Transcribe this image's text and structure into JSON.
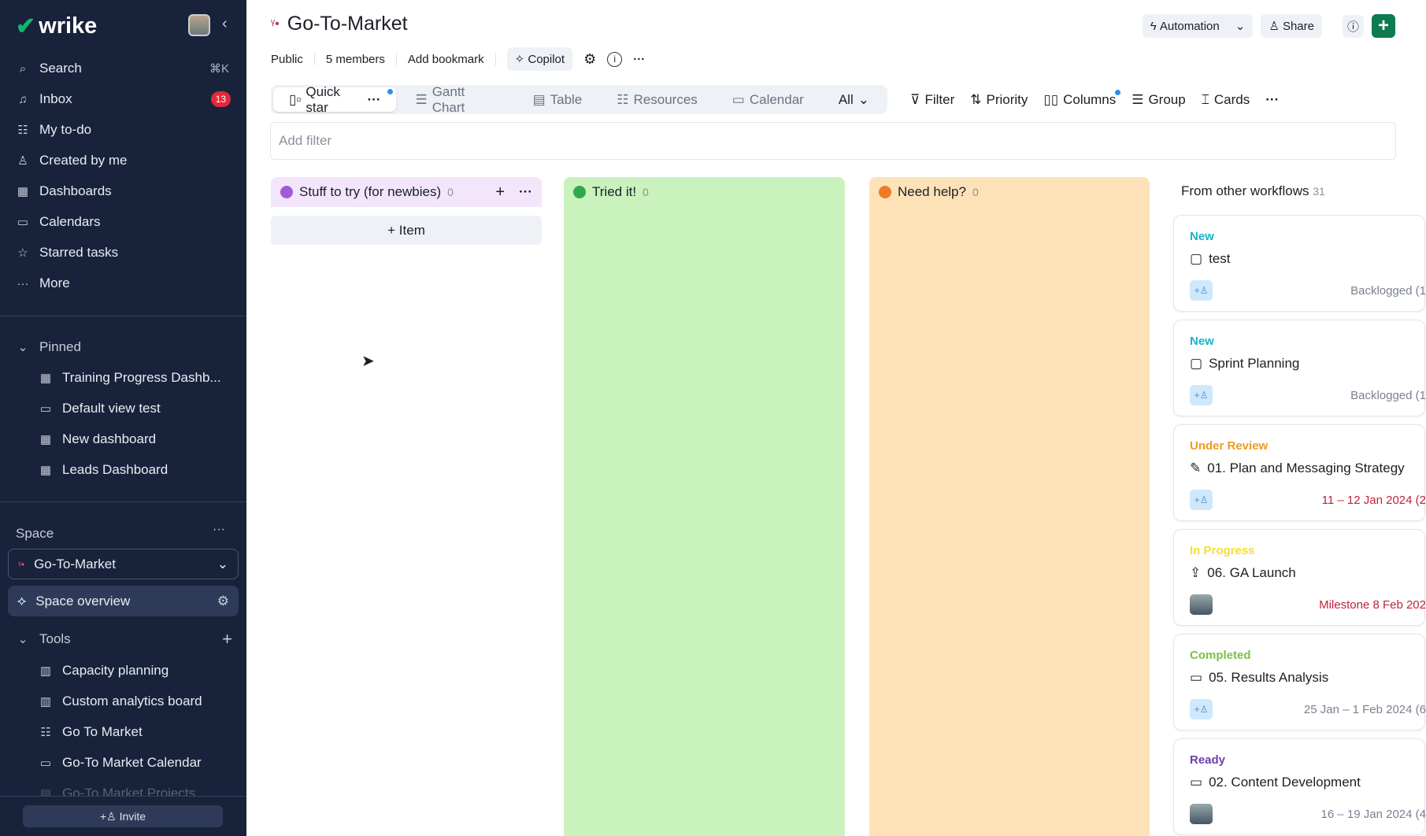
{
  "sidebar": {
    "logo": "wrike",
    "nav": [
      {
        "icon": "search-icon",
        "g": "⌕",
        "label": "Search",
        "kbd": "⌘K"
      },
      {
        "icon": "bell-icon",
        "g": "♫",
        "label": "Inbox",
        "badge": "13"
      },
      {
        "icon": "todo-icon",
        "g": "☷",
        "label": "My to-do"
      },
      {
        "icon": "user-icon",
        "g": "♙",
        "label": "Created by me"
      },
      {
        "icon": "dashboard-icon",
        "g": "▦",
        "label": "Dashboards"
      },
      {
        "icon": "calendar-icon",
        "g": "▭",
        "label": "Calendars"
      },
      {
        "icon": "star-icon",
        "g": "☆",
        "label": "Starred tasks"
      },
      {
        "icon": "more-icon",
        "g": "···",
        "label": "More"
      }
    ],
    "pinned_label": "Pinned",
    "pinned": [
      {
        "icon": "dashboard-icon",
        "g": "▦",
        "label": "Training Progress Dashb..."
      },
      {
        "icon": "folder-icon",
        "g": "▭",
        "label": "Default view test"
      },
      {
        "icon": "dashboard-icon",
        "g": "▦",
        "label": "New dashboard"
      },
      {
        "icon": "dashboard-icon",
        "g": "▦",
        "label": "Leads Dashboard"
      }
    ],
    "space_label": "Space",
    "space_selected": "Go-To-Market",
    "space_overview": "Space overview",
    "tools_label": "Tools",
    "tools": [
      {
        "icon": "analytics-icon",
        "g": "▥",
        "label": "Capacity planning"
      },
      {
        "icon": "analytics-icon",
        "g": "▥",
        "label": "Custom analytics board"
      },
      {
        "icon": "resources-icon",
        "g": "☷",
        "label": "Go To Market"
      },
      {
        "icon": "calendar-icon",
        "g": "▭",
        "label": "Go-To Market Calendar"
      },
      {
        "icon": "table-icon",
        "g": "▤",
        "label": "Go-To Market Projects"
      }
    ],
    "invite": "Invite"
  },
  "header": {
    "title": "Go-To-Market",
    "meta": [
      "Public",
      "5 members",
      "Add bookmark"
    ],
    "copilot": "Copilot",
    "automation": "Automation",
    "share": "Share"
  },
  "tabs": [
    {
      "label": "Quick star",
      "icon": "board-icon",
      "g": "▯▫",
      "active": true
    },
    {
      "label": "Gantt Chart",
      "icon": "gantt-icon",
      "g": "☰"
    },
    {
      "label": "Table",
      "icon": "table-icon",
      "g": "▤"
    },
    {
      "label": "Resources",
      "icon": "resources-icon",
      "g": "☷"
    },
    {
      "label": "Calendar",
      "icon": "calendar-icon",
      "g": "▭"
    },
    {
      "label": "All",
      "icon": "chevron-down-icon",
      "g": "⌄"
    }
  ],
  "toolbar": [
    {
      "label": "Filter",
      "icon": "filter-icon",
      "g": "⊽"
    },
    {
      "label": "Priority",
      "icon": "sort-icon",
      "g": "⇅"
    },
    {
      "label": "Columns",
      "icon": "columns-icon",
      "g": "▯▯"
    },
    {
      "label": "Group",
      "icon": "group-icon",
      "g": "☰"
    },
    {
      "label": "Cards",
      "icon": "cards-icon",
      "g": "⌶"
    }
  ],
  "filter_placeholder": "Add filter",
  "columns": [
    {
      "title": "Stuff to try (for newbies)",
      "count": "0",
      "color": "#f3e6fb",
      "dot": "#a25bd6"
    },
    {
      "title": "Tried it!",
      "count": "0",
      "color": "#c9f2bd",
      "dot": "#2eaa4c"
    },
    {
      "title": "Need help?",
      "count": "0",
      "color": "#fde2b7",
      "dot": "#ee7c24"
    }
  ],
  "add_item": "+ Item",
  "other": {
    "title": "From other workflows",
    "count": "31"
  },
  "cards": [
    {
      "status": "New",
      "color": "#19b2c8",
      "name": "test",
      "icon": "task-icon",
      "date": "Backlogged (1",
      "dcolor": "#7a8190"
    },
    {
      "status": "New",
      "color": "#19b2c8",
      "name": "Sprint Planning",
      "icon": "task-icon",
      "date": "Backlogged (1",
      "dcolor": "#7a8190"
    },
    {
      "status": "Under Review",
      "color": "#f09a22",
      "name": "01. Plan and Messaging Strategy",
      "icon": "edit-icon",
      "date": "11 – 12 Jan 2024 (2",
      "dcolor": "#c0233c"
    },
    {
      "status": "In Progress",
      "color": "#f2e03a",
      "name": "06. GA Launch",
      "icon": "milestone-icon",
      "date": "Milestone 8 Feb 202",
      "dcolor": "#c0233c",
      "photo": true
    },
    {
      "status": "Completed",
      "color": "#7ac24a",
      "name": "05. Results Analysis",
      "icon": "folder-icon",
      "date": "25 Jan – 1 Feb 2024 (6",
      "dcolor": "#7a8190"
    },
    {
      "status": "Ready",
      "color": "#6a3fb0",
      "name": "02. Content Development",
      "icon": "folder-icon",
      "date": "16 – 19 Jan 2024 (4",
      "dcolor": "#7a8190",
      "photo": true
    }
  ]
}
